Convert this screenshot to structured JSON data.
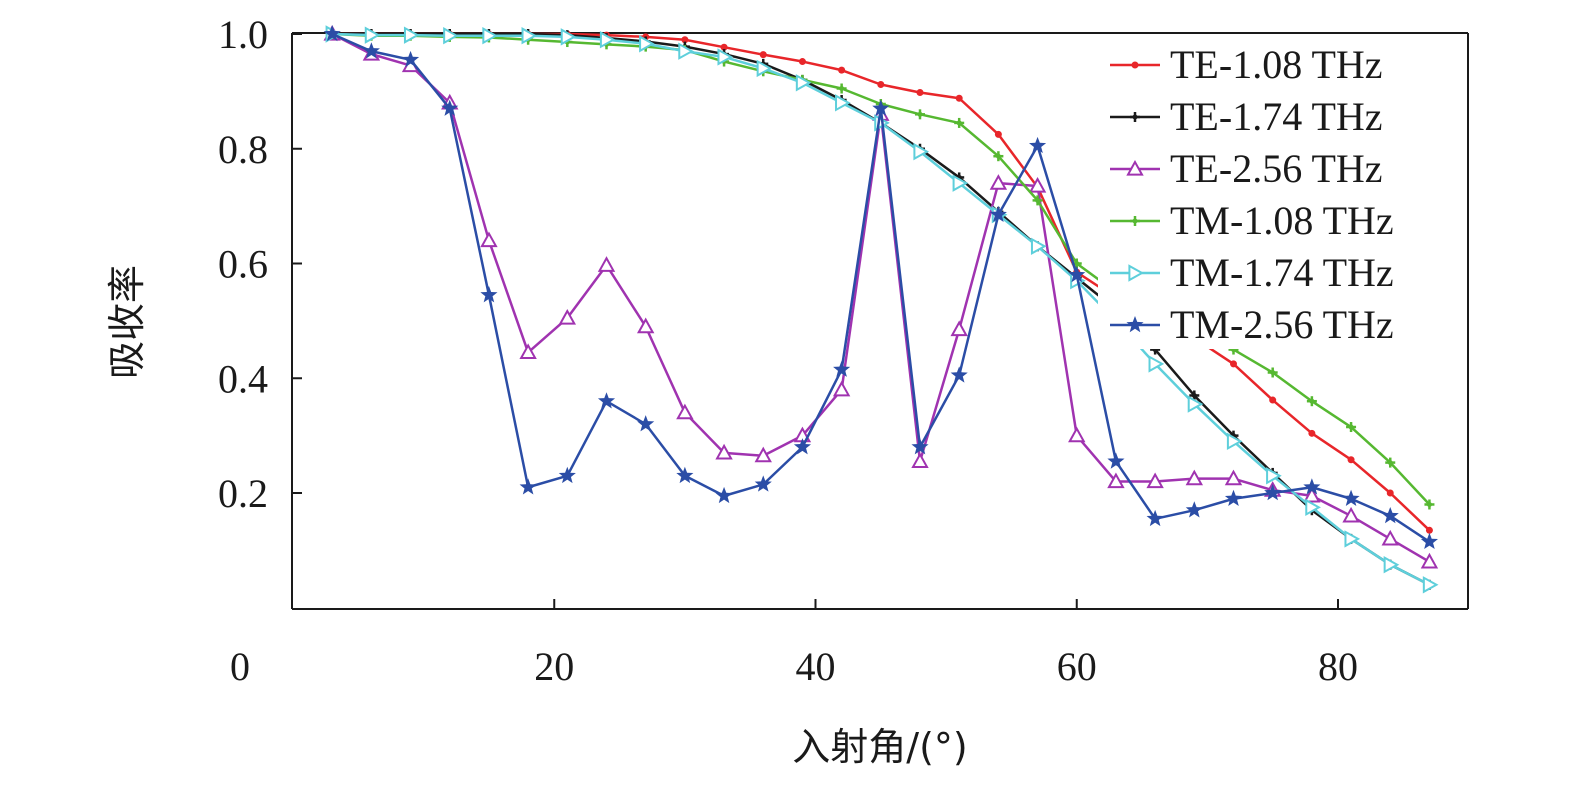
{
  "chart_data": {
    "type": "line",
    "title": "",
    "xlabel": "入射角/(°)",
    "ylabel": "吸收率",
    "xlim": [
      0,
      90
    ],
    "ylim": [
      0,
      1.0
    ],
    "x_ticks": [
      0,
      20,
      40,
      60,
      80
    ],
    "x_tick_labels": [
      "0",
      "20",
      "40",
      "60",
      "80"
    ],
    "y_ticks": [
      0.2,
      0.4,
      0.6,
      0.8,
      1.0
    ],
    "y_tick_labels": [
      "0.2",
      "0.4",
      "0.6",
      "0.8",
      "1.0"
    ],
    "grid": false,
    "legend_position": "top-right",
    "x": [
      3,
      6,
      9,
      12,
      15,
      18,
      21,
      24,
      27,
      30,
      33,
      36,
      39,
      42,
      45,
      48,
      51,
      54,
      57,
      60,
      63,
      66,
      69,
      72,
      75,
      78,
      81,
      84,
      87
    ],
    "series": [
      {
        "name": "TE-1.08 THz",
        "color": "#e8262a",
        "marker": "dot",
        "values": [
          1.0,
          1.0,
          1.0,
          1.0,
          1.0,
          1.0,
          1.0,
          0.998,
          0.995,
          0.99,
          0.977,
          0.964,
          0.952,
          0.937,
          0.912,
          0.898,
          0.888,
          0.825,
          0.733,
          0.585,
          0.54,
          0.51,
          0.47,
          0.425,
          0.362,
          0.304,
          0.258,
          0.2,
          0.135
        ]
      },
      {
        "name": "TE-1.74 THz",
        "color": "#1a1a1a",
        "marker": "plus",
        "values": [
          1.0,
          1.0,
          1.0,
          1.0,
          1.0,
          1.0,
          0.998,
          0.993,
          0.987,
          0.978,
          0.965,
          0.948,
          0.92,
          0.885,
          0.845,
          0.8,
          0.75,
          0.69,
          0.63,
          0.575,
          0.52,
          0.45,
          0.37,
          0.3,
          0.235,
          0.17,
          0.12,
          0.075,
          0.04
        ]
      },
      {
        "name": "TE-2.56 THz",
        "color": "#a033b0",
        "marker": "triangle-up",
        "values": [
          1.0,
          0.965,
          0.945,
          0.88,
          0.64,
          0.445,
          0.505,
          0.597,
          0.49,
          0.34,
          0.27,
          0.265,
          0.3,
          0.38,
          0.86,
          0.255,
          0.485,
          0.74,
          0.735,
          0.3,
          0.22,
          0.22,
          0.225,
          0.225,
          0.205,
          0.195,
          0.16,
          0.12,
          0.08
        ]
      },
      {
        "name": "TM-1.08 THz",
        "color": "#56b831",
        "marker": "plus",
        "values": [
          1.0,
          0.997,
          0.997,
          0.995,
          0.994,
          0.99,
          0.986,
          0.982,
          0.978,
          0.972,
          0.952,
          0.935,
          0.92,
          0.905,
          0.878,
          0.86,
          0.845,
          0.787,
          0.71,
          0.6,
          0.55,
          0.51,
          0.48,
          0.45,
          0.41,
          0.36,
          0.315,
          0.253,
          0.18
        ]
      },
      {
        "name": "TM-1.74 THz",
        "color": "#5ecfdb",
        "marker": "triangle-right",
        "values": [
          1.0,
          0.998,
          0.998,
          0.997,
          0.997,
          0.997,
          0.995,
          0.99,
          0.983,
          0.97,
          0.96,
          0.94,
          0.915,
          0.88,
          0.845,
          0.795,
          0.74,
          0.685,
          0.63,
          0.57,
          0.5,
          0.425,
          0.355,
          0.29,
          0.23,
          0.175,
          0.12,
          0.075,
          0.04
        ]
      },
      {
        "name": "TM-2.56 THz",
        "color": "#2b4da6",
        "marker": "star",
        "values": [
          1.0,
          0.97,
          0.955,
          0.87,
          0.545,
          0.21,
          0.23,
          0.36,
          0.32,
          0.23,
          0.195,
          0.215,
          0.28,
          0.415,
          0.87,
          0.28,
          0.405,
          0.685,
          0.805,
          0.58,
          0.255,
          0.155,
          0.17,
          0.19,
          0.2,
          0.21,
          0.19,
          0.16,
          0.115
        ]
      }
    ]
  }
}
